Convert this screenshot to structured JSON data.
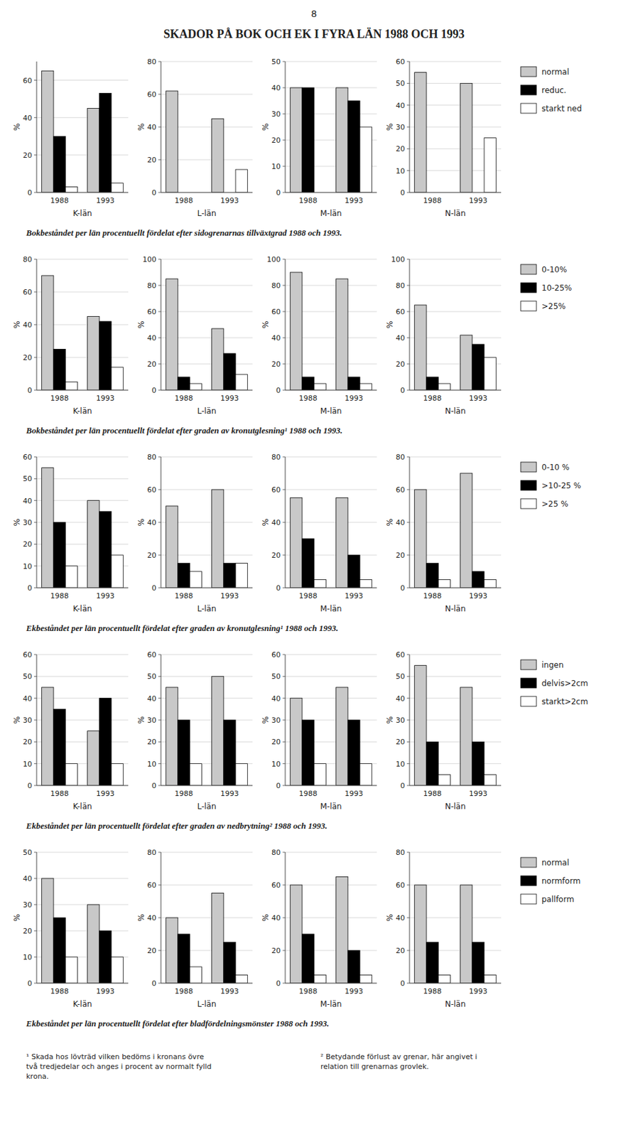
{
  "title": "SKADOR PÅ BOK OCH EK I FYRA LÄN 1988 OCH 1993",
  "annotations": [
    "8",
    "¹ Skada hos lövträd vilken bedöms i kronans övre\ntvå tredjedelar och anges i procent av normalt fylld\nkrona.",
    "² Betydande förlust av grenar, här angivet i\nrelation till grenarnas grovlek."
  ],
  "chart_data": [
    {
      "type": "bar",
      "xlabel": "K-län",
      "ylabel": "%",
      "categories": [
        "1988",
        "1993"
      ],
      "ylim": [
        0,
        70
      ],
      "yticks": [
        0,
        20,
        40,
        60
      ],
      "grid": true,
      "annotations": [
        "Bokbeståndet per län procentuellt fördelat efter sidogrenarnas tillväxtgrad 1988 och 1993."
      ],
      "series": [
        {
          "name": "normal",
          "color": "#c8c8c8",
          "values": [
            65,
            45
          ]
        },
        {
          "name": "reduc.",
          "color": "#000000",
          "values": [
            30,
            53
          ]
        },
        {
          "name": "starkt ned",
          "color": "#ffffff",
          "values": [
            3,
            5
          ]
        }
      ]
    },
    {
      "type": "bar",
      "xlabel": "L-län",
      "ylabel": "%",
      "categories": [
        "1988",
        "1993"
      ],
      "ylim": [
        0,
        80
      ],
      "yticks": [
        0,
        20,
        40,
        60,
        80
      ],
      "grid": true,
      "series": [
        {
          "name": "normal",
          "color": "#c8c8c8",
          "values": [
            62,
            45
          ]
        },
        {
          "name": "reduc.",
          "color": "#000000",
          "values": [
            0,
            0
          ]
        },
        {
          "name": "starkt ned",
          "color": "#ffffff",
          "values": [
            0,
            14
          ]
        }
      ]
    },
    {
      "type": "bar",
      "xlabel": "M-län",
      "ylabel": "%",
      "categories": [
        "1988",
        "1993"
      ],
      "ylim": [
        0,
        50
      ],
      "yticks": [
        0,
        10,
        20,
        30,
        40,
        50
      ],
      "grid": true,
      "series": [
        {
          "name": "normal",
          "color": "#c8c8c8",
          "values": [
            40,
            40
          ]
        },
        {
          "name": "reduc.",
          "color": "#000000",
          "values": [
            40,
            35
          ]
        },
        {
          "name": "starkt ned",
          "color": "#ffffff",
          "values": [
            0,
            25
          ]
        }
      ]
    },
    {
      "type": "bar",
      "xlabel": "N-län",
      "ylabel": "%",
      "categories": [
        "1988",
        "1993"
      ],
      "ylim": [
        0,
        60
      ],
      "yticks": [
        0,
        10,
        20,
        30,
        40,
        50,
        60
      ],
      "grid": true,
      "legend": "right",
      "series": [
        {
          "name": "normal",
          "color": "#c8c8c8",
          "values": [
            55,
            50
          ]
        },
        {
          "name": "reduc.",
          "color": "#000000",
          "values": [
            0,
            0
          ]
        },
        {
          "name": "starkt ned",
          "color": "#ffffff",
          "values": [
            0,
            25
          ]
        }
      ]
    },
    {
      "type": "bar",
      "xlabel": "K-län",
      "ylabel": "%",
      "categories": [
        "1988",
        "1993"
      ],
      "ylim": [
        0,
        80
      ],
      "yticks": [
        0,
        20,
        40,
        60,
        80
      ],
      "grid": true,
      "annotations": [
        "Bokbeståndet per län procentuellt fördelat efter graden av kronutglesning¹ 1988 och 1993."
      ],
      "series": [
        {
          "name": "0-10%",
          "color": "#c8c8c8",
          "values": [
            70,
            45
          ]
        },
        {
          "name": "10-25%",
          "color": "#000000",
          "values": [
            25,
            42
          ]
        },
        {
          "name": ">25%",
          "color": "#ffffff",
          "values": [
            5,
            14
          ]
        }
      ]
    },
    {
      "type": "bar",
      "xlabel": "L-län",
      "ylabel": "%",
      "categories": [
        "1988",
        "1993"
      ],
      "ylim": [
        0,
        100
      ],
      "yticks": [
        0,
        20,
        40,
        60,
        80,
        100
      ],
      "grid": true,
      "series": [
        {
          "name": "0-10%",
          "color": "#c8c8c8",
          "values": [
            85,
            47
          ]
        },
        {
          "name": "10-25%",
          "color": "#000000",
          "values": [
            10,
            28
          ]
        },
        {
          "name": ">25%",
          "color": "#ffffff",
          "values": [
            5,
            12
          ]
        }
      ]
    },
    {
      "type": "bar",
      "xlabel": "M-län",
      "ylabel": "%",
      "categories": [
        "1988",
        "1993"
      ],
      "ylim": [
        0,
        100
      ],
      "yticks": [
        0,
        20,
        40,
        60,
        80,
        100
      ],
      "grid": true,
      "series": [
        {
          "name": "0-10%",
          "color": "#c8c8c8",
          "values": [
            90,
            85
          ]
        },
        {
          "name": "10-25%",
          "color": "#000000",
          "values": [
            10,
            10
          ]
        },
        {
          "name": ">25%",
          "color": "#ffffff",
          "values": [
            5,
            5
          ]
        }
      ]
    },
    {
      "type": "bar",
      "xlabel": "N-län",
      "ylabel": "%",
      "categories": [
        "1988",
        "1993"
      ],
      "ylim": [
        0,
        100
      ],
      "yticks": [
        0,
        20,
        40,
        60,
        80,
        100
      ],
      "grid": true,
      "legend": "right",
      "series": [
        {
          "name": "0-10%",
          "color": "#c8c8c8",
          "values": [
            65,
            42
          ]
        },
        {
          "name": "10-25%",
          "color": "#000000",
          "values": [
            10,
            35
          ]
        },
        {
          "name": ">25%",
          "color": "#ffffff",
          "values": [
            5,
            25
          ]
        }
      ]
    },
    {
      "type": "bar",
      "xlabel": "K-län",
      "ylabel": "%",
      "categories": [
        "1988",
        "1993"
      ],
      "ylim": [
        0,
        60
      ],
      "yticks": [
        0,
        10,
        20,
        30,
        40,
        50,
        60
      ],
      "grid": true,
      "annotations": [
        "Ekbeståndet per län procentuellt fördelat efter graden av kronutglesning¹ 1988 och 1993."
      ],
      "series": [
        {
          "name": "0-10 %",
          "color": "#c8c8c8",
          "values": [
            55,
            40
          ]
        },
        {
          "name": ">10-25 %",
          "color": "#000000",
          "values": [
            30,
            35
          ]
        },
        {
          "name": ">25 %",
          "color": "#ffffff",
          "values": [
            10,
            15
          ]
        }
      ]
    },
    {
      "type": "bar",
      "xlabel": "L-län",
      "ylabel": "%",
      "categories": [
        "1988",
        "1993"
      ],
      "ylim": [
        0,
        80
      ],
      "yticks": [
        0,
        20,
        40,
        60,
        80
      ],
      "grid": true,
      "series": [
        {
          "name": "0-10 %",
          "color": "#c8c8c8",
          "values": [
            50,
            60
          ]
        },
        {
          "name": ">10-25 %",
          "color": "#000000",
          "values": [
            15,
            15
          ]
        },
        {
          "name": ">25 %",
          "color": "#ffffff",
          "values": [
            10,
            15
          ]
        }
      ]
    },
    {
      "type": "bar",
      "xlabel": "M-län",
      "ylabel": "%",
      "categories": [
        "1988",
        "1993"
      ],
      "ylim": [
        0,
        80
      ],
      "yticks": [
        0,
        20,
        40,
        60,
        80
      ],
      "grid": true,
      "series": [
        {
          "name": "0-10 %",
          "color": "#c8c8c8",
          "values": [
            55,
            55
          ]
        },
        {
          "name": ">10-25 %",
          "color": "#000000",
          "values": [
            30,
            20
          ]
        },
        {
          "name": ">25 %",
          "color": "#ffffff",
          "values": [
            5,
            5
          ]
        }
      ]
    },
    {
      "type": "bar",
      "xlabel": "N-län",
      "ylabel": "%",
      "categories": [
        "1988",
        "1993"
      ],
      "ylim": [
        0,
        80
      ],
      "yticks": [
        0,
        20,
        40,
        60,
        80
      ],
      "grid": true,
      "legend": "right",
      "series": [
        {
          "name": "0-10 %",
          "color": "#c8c8c8",
          "values": [
            60,
            70
          ]
        },
        {
          "name": ">10-25 %",
          "color": "#000000",
          "values": [
            15,
            10
          ]
        },
        {
          "name": ">25 %",
          "color": "#ffffff",
          "values": [
            5,
            5
          ]
        }
      ]
    },
    {
      "type": "bar",
      "xlabel": "K-län",
      "ylabel": "%",
      "categories": [
        "1988",
        "1993"
      ],
      "ylim": [
        0,
        60
      ],
      "yticks": [
        0,
        10,
        20,
        30,
        40,
        50,
        60
      ],
      "grid": true,
      "annotations": [
        "Ekbeståndet per län procentuellt fördelat efter graden av nedbrytning² 1988 och 1993."
      ],
      "series": [
        {
          "name": "ingen",
          "color": "#c8c8c8",
          "values": [
            45,
            25
          ]
        },
        {
          "name": "delvis>2cm",
          "color": "#000000",
          "values": [
            35,
            40
          ]
        },
        {
          "name": "starkt>2cm",
          "color": "#ffffff",
          "values": [
            10,
            10
          ]
        }
      ]
    },
    {
      "type": "bar",
      "xlabel": "L-län",
      "ylabel": "%",
      "categories": [
        "1988",
        "1993"
      ],
      "ylim": [
        0,
        60
      ],
      "yticks": [
        0,
        10,
        20,
        30,
        40,
        50,
        60
      ],
      "grid": true,
      "series": [
        {
          "name": "ingen",
          "color": "#c8c8c8",
          "values": [
            45,
            50
          ]
        },
        {
          "name": "delvis>2cm",
          "color": "#000000",
          "values": [
            30,
            30
          ]
        },
        {
          "name": "starkt>2cm",
          "color": "#ffffff",
          "values": [
            10,
            10
          ]
        }
      ]
    },
    {
      "type": "bar",
      "xlabel": "M-län",
      "ylabel": "%",
      "categories": [
        "1988",
        "1993"
      ],
      "ylim": [
        0,
        60
      ],
      "yticks": [
        0,
        10,
        20,
        30,
        40,
        50,
        60
      ],
      "grid": true,
      "series": [
        {
          "name": "ingen",
          "color": "#c8c8c8",
          "values": [
            40,
            45
          ]
        },
        {
          "name": "delvis>2cm",
          "color": "#000000",
          "values": [
            30,
            30
          ]
        },
        {
          "name": "starkt>2cm",
          "color": "#ffffff",
          "values": [
            10,
            10
          ]
        }
      ]
    },
    {
      "type": "bar",
      "xlabel": "N-län",
      "ylabel": "%",
      "categories": [
        "1988",
        "1993"
      ],
      "ylim": [
        0,
        60
      ],
      "yticks": [
        0,
        10,
        20,
        30,
        40,
        50,
        60
      ],
      "grid": true,
      "legend": "right",
      "series": [
        {
          "name": "ingen",
          "color": "#c8c8c8",
          "values": [
            55,
            45
          ]
        },
        {
          "name": "delvis>2cm",
          "color": "#000000",
          "values": [
            20,
            20
          ]
        },
        {
          "name": "starkt>2cm",
          "color": "#ffffff",
          "values": [
            5,
            5
          ]
        }
      ]
    },
    {
      "type": "bar",
      "xlabel": "K-län",
      "ylabel": "%",
      "categories": [
        "1988",
        "1993"
      ],
      "ylim": [
        0,
        50
      ],
      "yticks": [
        0,
        10,
        20,
        30,
        40,
        50
      ],
      "grid": true,
      "annotations": [
        "Ekbeståndet per län procentuellt fördelat efter bladfördelningsmönster 1988 och 1993."
      ],
      "series": [
        {
          "name": "normal",
          "color": "#c8c8c8",
          "values": [
            40,
            30
          ]
        },
        {
          "name": "normform",
          "color": "#000000",
          "values": [
            25,
            20
          ]
        },
        {
          "name": "pallform",
          "color": "#ffffff",
          "values": [
            10,
            10
          ]
        }
      ]
    },
    {
      "type": "bar",
      "xlabel": "L-län",
      "ylabel": "%",
      "categories": [
        "1988",
        "1993"
      ],
      "ylim": [
        0,
        80
      ],
      "yticks": [
        0,
        20,
        40,
        60,
        80
      ],
      "grid": true,
      "series": [
        {
          "name": "normal",
          "color": "#c8c8c8",
          "values": [
            40,
            55
          ]
        },
        {
          "name": "normform",
          "color": "#000000",
          "values": [
            30,
            25
          ]
        },
        {
          "name": "pallform",
          "color": "#ffffff",
          "values": [
            10,
            5
          ]
        }
      ]
    },
    {
      "type": "bar",
      "xlabel": "M-län",
      "ylabel": "%",
      "categories": [
        "1988",
        "1993"
      ],
      "ylim": [
        0,
        80
      ],
      "yticks": [
        0,
        20,
        40,
        60,
        80
      ],
      "grid": true,
      "series": [
        {
          "name": "normal",
          "color": "#c8c8c8",
          "values": [
            60,
            65
          ]
        },
        {
          "name": "normform",
          "color": "#000000",
          "values": [
            30,
            20
          ]
        },
        {
          "name": "pallform",
          "color": "#ffffff",
          "values": [
            5,
            5
          ]
        }
      ]
    },
    {
      "type": "bar",
      "xlabel": "N-län",
      "ylabel": "%",
      "categories": [
        "1988",
        "1993"
      ],
      "ylim": [
        0,
        80
      ],
      "yticks": [
        0,
        20,
        40,
        60,
        80
      ],
      "grid": true,
      "legend": "right",
      "series": [
        {
          "name": "normal",
          "color": "#c8c8c8",
          "values": [
            60,
            60
          ]
        },
        {
          "name": "normform",
          "color": "#000000",
          "values": [
            25,
            25
          ]
        },
        {
          "name": "pallform",
          "color": "#ffffff",
          "values": [
            5,
            5
          ]
        }
      ]
    }
  ]
}
